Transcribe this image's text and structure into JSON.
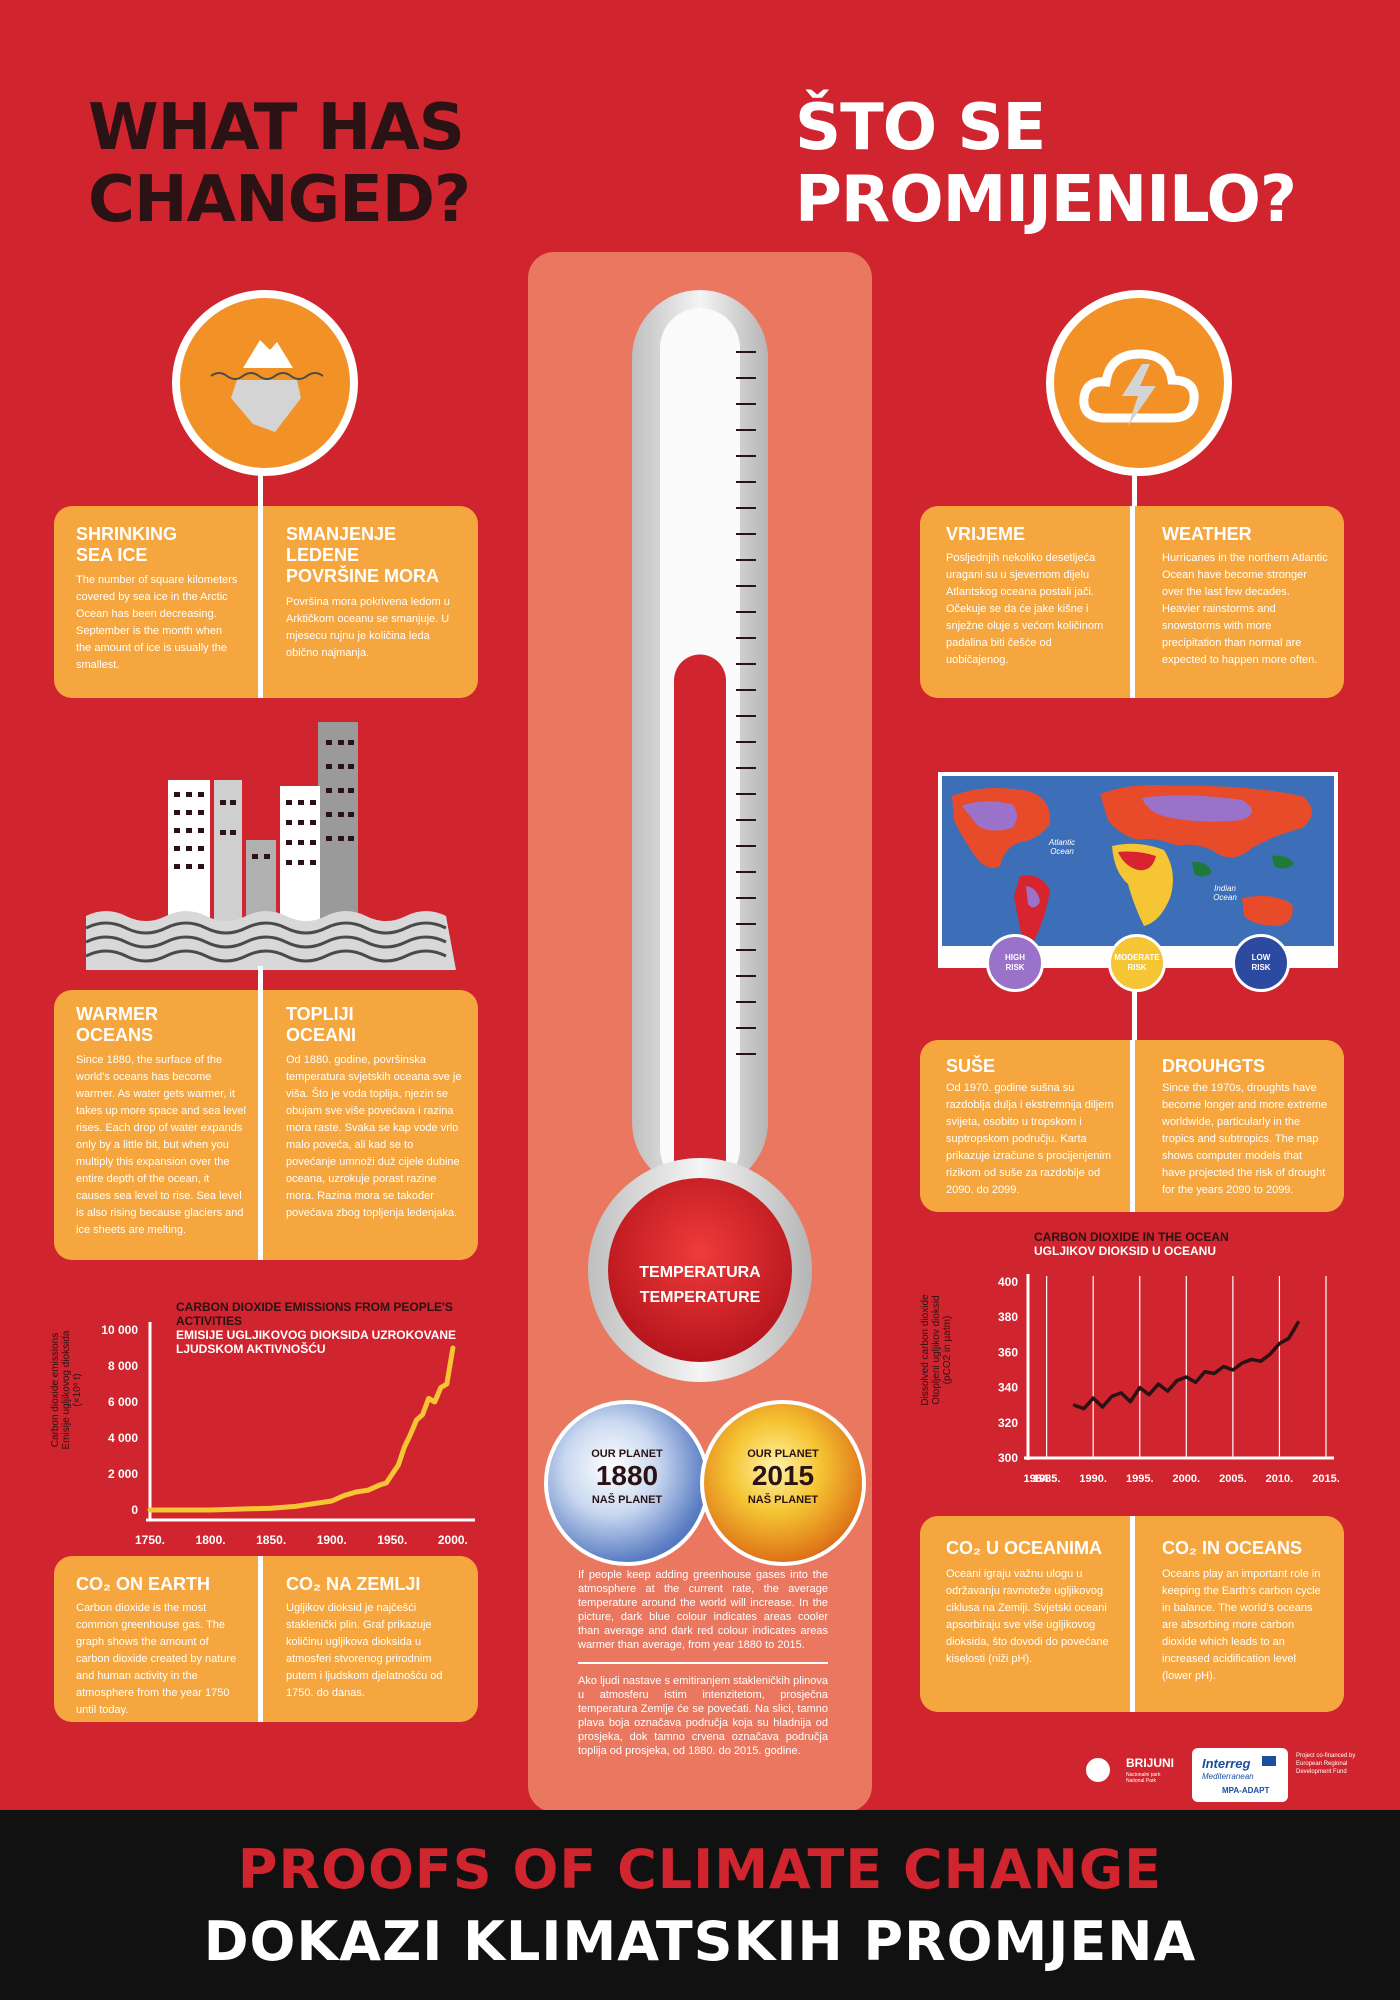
{
  "header": {
    "title_en_line1": "WHAT HAS",
    "title_en_line2": "CHANGED?",
    "title_hr_line1": "ŠTO SE",
    "title_hr_line2": "PROMIJENILO?"
  },
  "icons": {
    "sea_ice": "iceberg-icon",
    "weather": "storm-cloud-icon",
    "oceans": "city-buildings-icon"
  },
  "sea_ice": {
    "en_title_1": "SHRINKING",
    "en_title_2": "SEA ICE",
    "en_text": "The number of square kilometers covered by sea ice in the Arctic Ocean has been decreasing. September is the month when the amount of ice is usually the smallest.",
    "hr_title_1": "SMANJENJE",
    "hr_title_2": "LEDENE",
    "hr_title_3": "POVRŠINE MORA",
    "hr_text": "Površina mora pokrivena ledom u Arktičkom oceanu se smanjuje. U mjesecu rujnu je količina leda obično najmanja."
  },
  "weather": {
    "hr_title": "VRIJEME",
    "hr_text": "Posljednjih nekoliko desetljeća uragani su u sjevernom dijelu Atlantskog oceana postali jači. Očekuje se da će jake kišne i snježne oluje s većom količinom padalina biti češće od uobičajenog.",
    "en_title": "WEATHER",
    "en_text": "Hurricanes in the northern Atlantic Ocean have become stronger over the last few decades. Heavier rainstorms and snowstorms with more precipitation than normal are expected to happen more often."
  },
  "map": {
    "label_atlantic": "Atlantic Ocean",
    "label_indian": "Indian Ocean",
    "risk_high_1": "HIGH",
    "risk_high_2": "RISK",
    "risk_moderate_1": "MODERATE",
    "risk_moderate_2": "RISK",
    "risk_low_1": "LOW",
    "risk_low_2": "RISK",
    "color_high": "#9b72c9",
    "color_moderate": "#f5c533",
    "color_low": "#2b4aa0"
  },
  "oceans": {
    "en_title_1": "WARMER",
    "en_title_2": "OCEANS",
    "en_text": "Since 1880, the surface of the world's oceans has become warmer. As water gets warmer, it takes up more space and sea level rises. Each drop of water expands only by a little bit, but when you multiply this expansion over the entire depth of the ocean, it causes sea level to rise. Sea level is also rising because glaciers and ice sheets are melting.",
    "hr_title_1": "TOPLIJI",
    "hr_title_2": "OCEANI",
    "hr_text": "Od 1880. godine, površinska temperatura svjetskih oceana sve je viša. Što je voda toplija, njezin se obujam sve više povećava i razina mora raste. Svaka se kap vode vrlo malo poveća, ali kad se to povećanje umnoži duž cijele dubine oceana, uzrokuje porast razine mora. Razina mora se također povećava zbog topljenja ledenjaka."
  },
  "drought": {
    "hr_title": "SUŠE",
    "hr_text": "Od 1970. godine sušna su razdoblja dulja i ekstremnija diljem svijeta, osobito u tropskom i suptropskom području. Karta prikazuje izračune s procijenjenim rizikom od suše za razdoblje od 2090. do 2099.",
    "en_title": "DROUHGTS",
    "en_text": "Since the 1970s, droughts have become longer and more extreme worldwide, particularly in the tropics and subtropics. The map shows computer models that have projected the risk of drought for the years 2090 to 2099."
  },
  "thermometer": {
    "label_hr": "TEMPERATURA",
    "label_en": "TEMPERATURE",
    "fill_fraction": 0.62
  },
  "planets": {
    "p1_line1": "OUR PLANET",
    "p1_year": "1880",
    "p1_line3": "NAŠ PLANET",
    "p2_line1": "OUR PLANET",
    "p2_year": "2015",
    "p2_line3": "NAŠ PLANET"
  },
  "center_notes": {
    "en": "If people keep adding greenhouse gases into the atmosphere at the current rate, the average temperature around the world will increase. In the picture, dark blue colour indicates areas cooler than average and dark red colour indicates areas warmer than average, from year 1880 to 2015.",
    "hr": "Ako ljudi nastave s emitiranjem stakleničkih plinova u atmosferu istim intenzitetom, prosječna temperatura Zemlje će se povećati. Na slici, tamno plava boja označava područja koja su hladnija od prosjeka, dok tamno crvena označava područja toplija od prosjeka, od 1880. do 2015. godine."
  },
  "co2_earth": {
    "en_title": "CO₂ ON EARTH",
    "en_text": "Carbon dioxide is the most common greenhouse gas. The graph shows the amount of carbon dioxide created by nature and human activity in the atmosphere from the year 1750 until today.",
    "hr_title": "CO₂ NA ZEMLJI",
    "hr_text": "Ugljikov dioksid je najčešći staklenički plin. Graf prikazuje količinu ugljikova dioksida u atmosferi stvorenog prirodnim putem i ljudskom djelatnošću od 1750. do danas."
  },
  "co2_oceans": {
    "hr_title": "CO₂ U OCEANIMA",
    "hr_text": "Oceani igraju važnu ulogu u održavanju ravnoteže ugljikovog ciklusa na Zemlji. Svjetski oceani apsorbiraju sve više ugljikovog dioksida, što dovodi do povećane kiselosti (niži pH).",
    "en_title": "CO₂ IN OCEANS",
    "en_text": "Oceans play an important role in keeping the Earth's carbon cycle in balance. The world's oceans are absorbing more carbon dioxide which leads to an increased acidification level (lower pH)."
  },
  "logos": {
    "brijuni": "BRIJUNI",
    "brijuni_sub": "Nacionalni park National Park",
    "interreg": "Interreg",
    "mediterranean": "Mediterranean",
    "mpa": "MPA-ADAPT",
    "cofinanced": "Project co-financed by European Regional Development Fund"
  },
  "footer": {
    "line_en": "PROOFS OF CLIMATE CHANGE",
    "line_hr": "DOKAZI KLIMATSKIH PROMJENA"
  },
  "chart_data": [
    {
      "type": "line",
      "title": "CARBON DIOXIDE EMISSIONS FROM PEOPLE'S ACTIVITIES",
      "subtitle": "EMISIJE UGLJIKOVOG DIOKSIDA UZROKOVANE LJUDSKOM AKTIVNOŠĆU",
      "ylabel_1": "Carbon dioxide emissions",
      "ylabel_2": "Emisije ugljikovog dioksida",
      "ylabel_3": "(×10⁶ t)",
      "x_ticks": [
        "1750.",
        "1800.",
        "1850.",
        "1900.",
        "1950.",
        "2000."
      ],
      "y_ticks": [
        "0",
        "2 000",
        "4 000",
        "6 000",
        "8 000",
        "10 000"
      ],
      "ylim": [
        0,
        10000
      ],
      "xlim": [
        1750,
        2010
      ],
      "series_color": "#f5c533",
      "x": [
        1750,
        1800,
        1850,
        1870,
        1900,
        1910,
        1920,
        1930,
        1940,
        1945,
        1950,
        1955,
        1960,
        1965,
        1970,
        1975,
        1980,
        1985,
        1990,
        1995,
        2000
      ],
      "values": [
        0,
        0,
        100,
        200,
        500,
        800,
        1000,
        1100,
        1400,
        1500,
        2000,
        2500,
        3500,
        4200,
        5000,
        5300,
        6200,
        6000,
        6800,
        7000,
        9000
      ]
    },
    {
      "type": "line",
      "title": "CARBON DIOXIDE IN THE OCEAN",
      "subtitle": "UGLJIKOV DIOKSID U OCEANU",
      "ylabel_1": "Dissolved carbon dioxide",
      "ylabel_2": "Otopljeni ugljikov dioksid",
      "ylabel_3": "(pCO2 in µatm)",
      "x_ticks": [
        "1984.",
        "1985.",
        "1990.",
        "1995.",
        "2000.",
        "2005.",
        "2010.",
        "2015."
      ],
      "y_ticks": [
        "300",
        "320",
        "340",
        "360",
        "380",
        "400"
      ],
      "ylim": [
        300,
        400
      ],
      "xlim": [
        1983,
        2015
      ],
      "series_color": "#2b1214",
      "x": [
        1988,
        1989,
        1990,
        1991,
        1992,
        1993,
        1994,
        1995,
        1996,
        1997,
        1998,
        1999,
        2000,
        2001,
        2002,
        2003,
        2004,
        2005,
        2006,
        2007,
        2008,
        2009,
        2010,
        2011,
        2012
      ],
      "values": [
        330,
        328,
        334,
        329,
        335,
        337,
        332,
        340,
        336,
        342,
        338,
        344,
        346,
        343,
        349,
        348,
        352,
        350,
        354,
        356,
        355,
        359,
        365,
        368,
        377
      ]
    }
  ]
}
